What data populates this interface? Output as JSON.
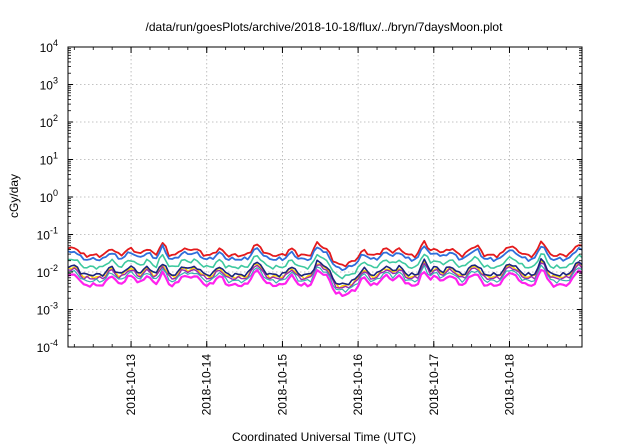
{
  "chart_data": {
    "type": "line",
    "title": "/data/run/goesPlots/archive/2018-10-18/flux/../bryn/7daysMoon.plot",
    "xlabel": "Coordinated Universal Time (UTC)",
    "ylabel": "cGy/day",
    "yscale": "log",
    "ylim": [
      0.0001,
      10000
    ],
    "xlim": [
      "2018-10-12 04:00",
      "2018-10-18 23:00"
    ],
    "x_ticks": [
      "2018-10-13",
      "2018-10-14",
      "2018-10-15",
      "2018-10-16",
      "2018-10-17",
      "2018-10-18"
    ],
    "y_ticks": [
      {
        "base": "10",
        "exp": "4",
        "value": 10000
      },
      {
        "base": "10",
        "exp": "3",
        "value": 1000
      },
      {
        "base": "10",
        "exp": "2",
        "value": 100
      },
      {
        "base": "10",
        "exp": "1",
        "value": 10
      },
      {
        "base": "10",
        "exp": "0",
        "value": 1
      },
      {
        "base": "10",
        "exp": "-1",
        "value": 0.1
      },
      {
        "base": "10",
        "exp": "-2",
        "value": 0.01
      },
      {
        "base": "10",
        "exp": "-3",
        "value": 0.001
      },
      {
        "base": "10",
        "exp": "-4",
        "value": 0.0001
      }
    ],
    "grid": true,
    "legend": "none",
    "sampling": "hourly series, 2018-10-12 04:00 to 2018-10-18 23:00 UTC",
    "series": [
      {
        "color": "#e41a1c",
        "base": 0.028,
        "amp": 0.55,
        "width": 1.8
      },
      {
        "color": "#2f6fdb",
        "base": 0.022,
        "amp": 0.55,
        "width": 1.8
      },
      {
        "color": "#3ec9a0",
        "base": 0.0135,
        "amp": 0.6,
        "width": 1.6
      },
      {
        "color": "#ffd700",
        "base": 0.0075,
        "amp": 0.75,
        "width": 1.6
      },
      {
        "color": "#9c27b0",
        "base": 0.0068,
        "amp": 0.75,
        "width": 1.4
      },
      {
        "color": "#1a237e",
        "base": 0.0085,
        "amp": 0.7,
        "width": 1.6
      },
      {
        "color": "#3ab0b0",
        "base": 0.0058,
        "amp": 0.75,
        "width": 1.2
      },
      {
        "color": "#ff22ee",
        "base": 0.0045,
        "amp": 0.85,
        "width": 2.2
      }
    ],
    "common_variation": {
      "dip_around": "2018-10-15 19:00",
      "dip_factor": 0.55,
      "peaks": [
        {
          "t": "2018-10-13 10:00",
          "factor": 2.1
        },
        {
          "t": "2018-10-15 11:00",
          "factor": 1.8
        },
        {
          "t": "2018-10-16 21:00",
          "factor": 2.4
        },
        {
          "t": "2018-10-17 14:00",
          "factor": 1.6
        },
        {
          "t": "2018-10-18 10:00",
          "factor": 1.7
        }
      ]
    }
  }
}
